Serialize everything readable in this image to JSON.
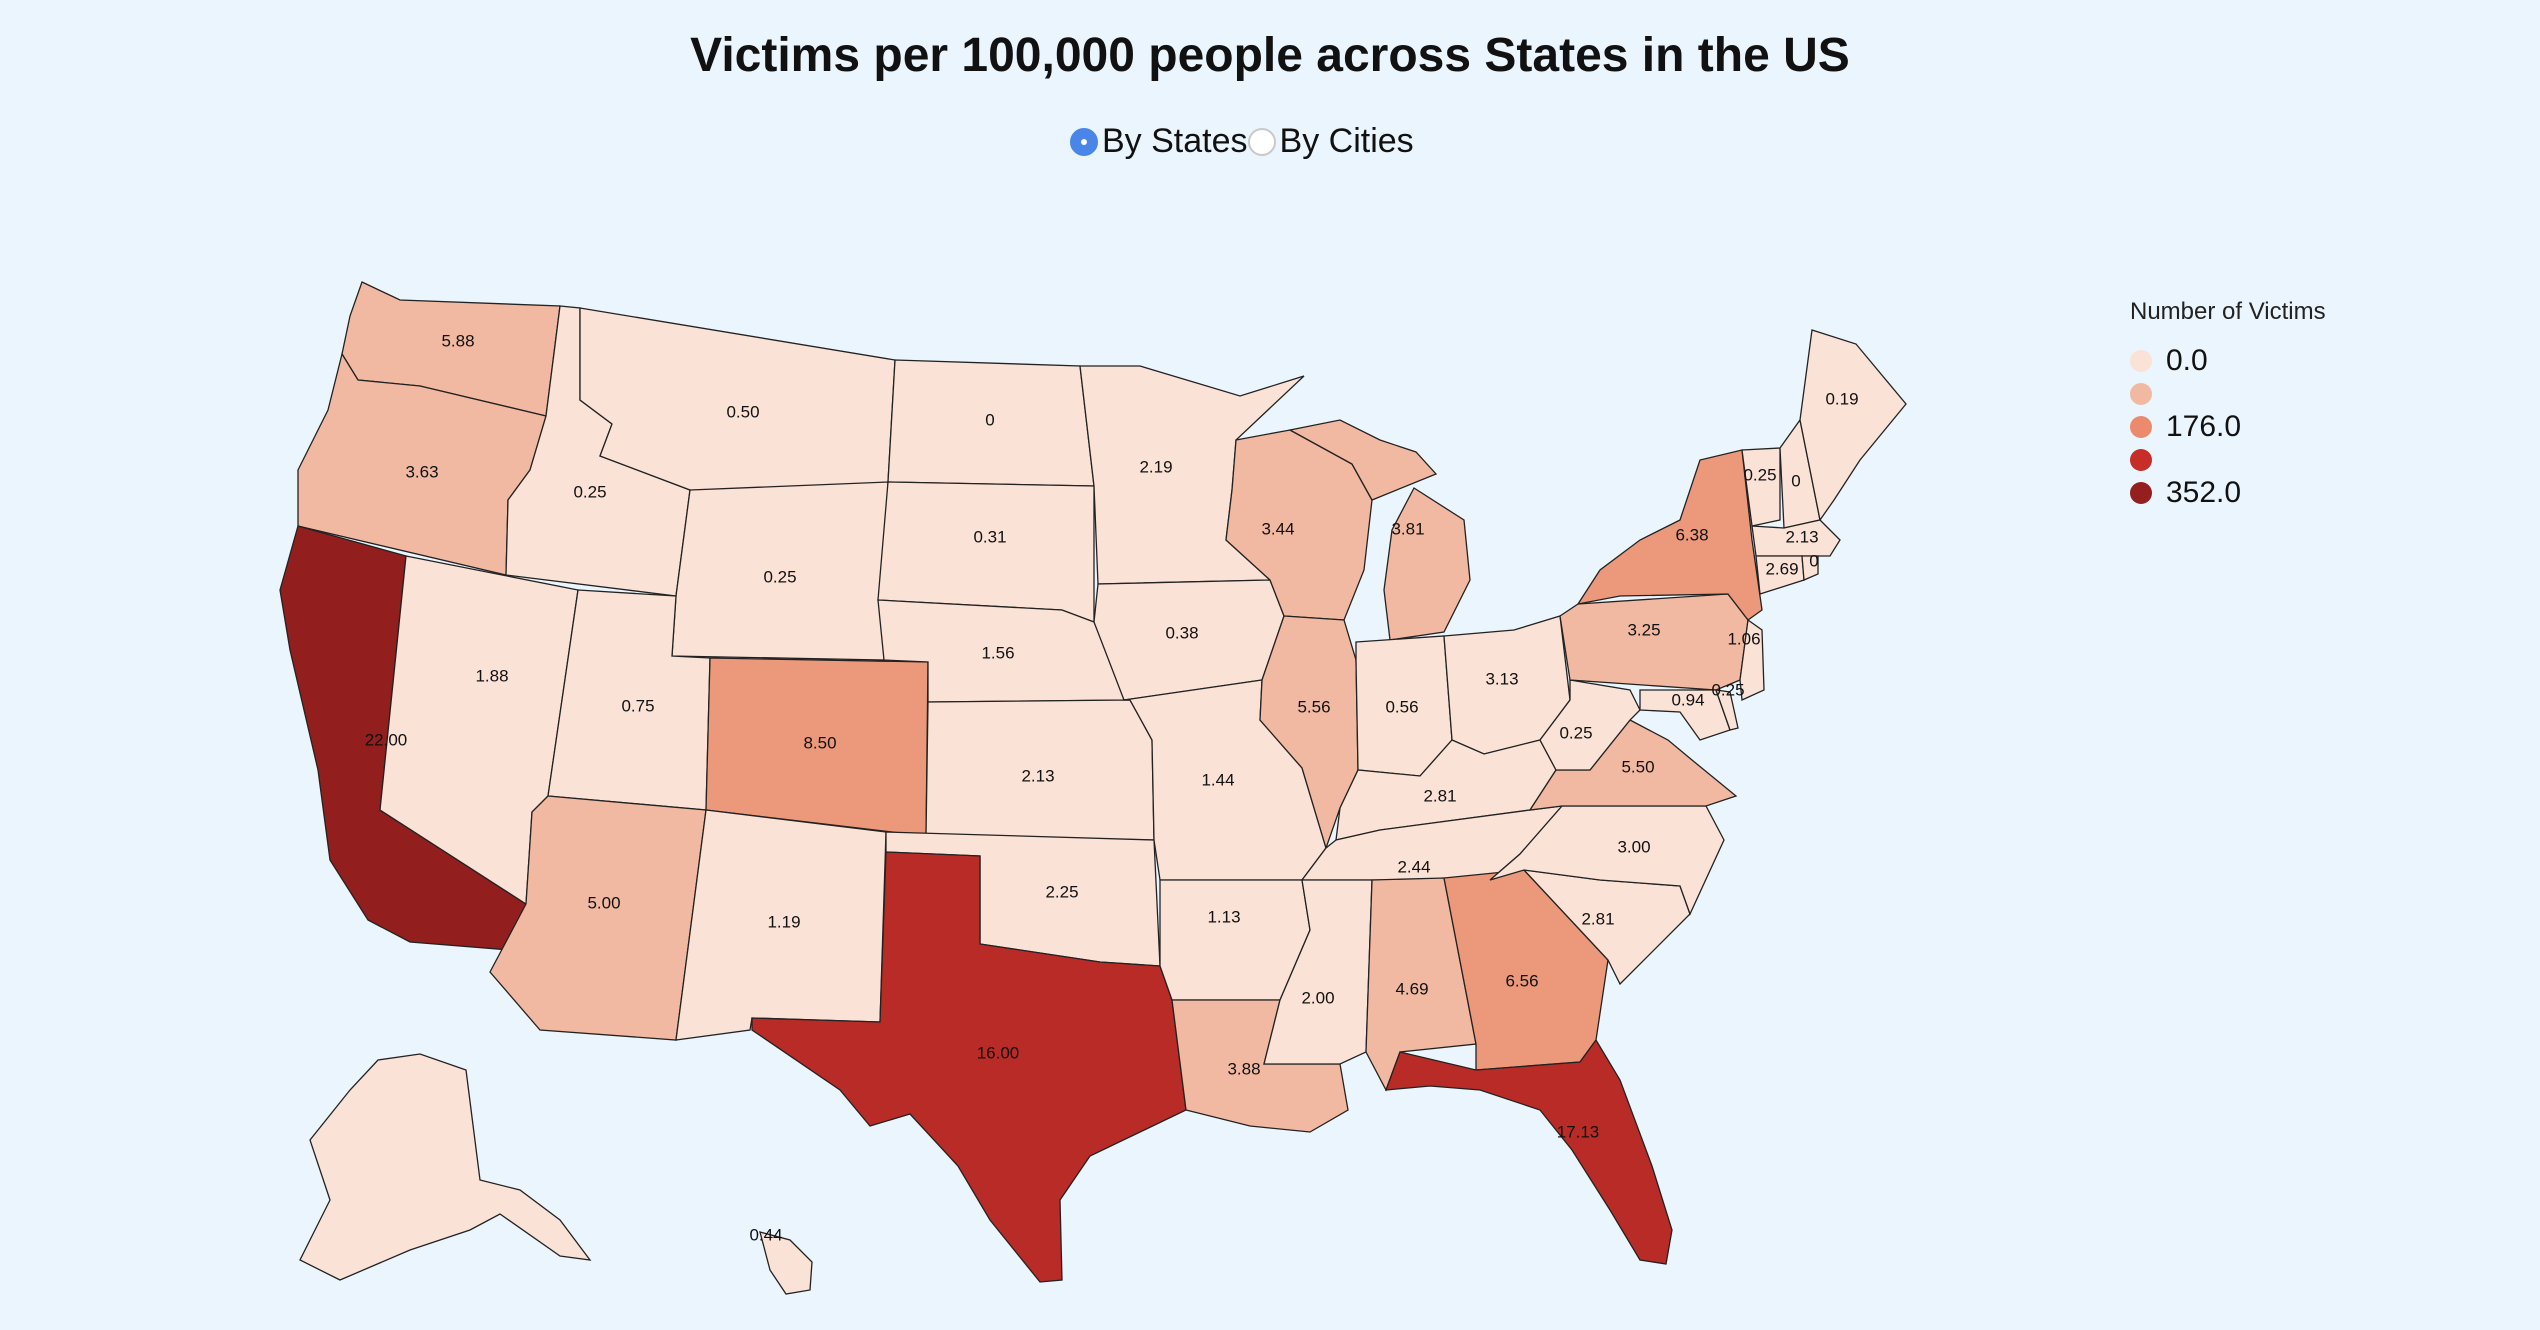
{
  "title": "Victims per 100,000 people across States in the US",
  "toggle": {
    "options": [
      {
        "label": "By States",
        "selected": true
      },
      {
        "label": "By Cities",
        "selected": false
      }
    ]
  },
  "legend": {
    "title": "Number of Victims",
    "items": [
      {
        "label": "0.0",
        "color": "#fbe2d6"
      },
      {
        "label": "",
        "color": "#f2b9a2"
      },
      {
        "label": "176.0",
        "color": "#ec8a6e"
      },
      {
        "label": "",
        "color": "#c62e27"
      },
      {
        "label": "352.0",
        "color": "#931f1e"
      }
    ]
  },
  "colors": {
    "level0": "#fbe2d6",
    "level1": "#f2b9a2",
    "level2": "#ec987b",
    "level3": "#b92b26",
    "level4": "#921f1e"
  },
  "states": {
    "WA": {
      "value": "5.88",
      "level": 1
    },
    "OR": {
      "value": "3.63",
      "level": 1
    },
    "CA": {
      "value": "22.00",
      "level": 4
    },
    "ID": {
      "value": "0.25",
      "level": 0
    },
    "NV": {
      "value": "1.88",
      "level": 0
    },
    "MT": {
      "value": "0.50",
      "level": 0
    },
    "WY": {
      "value": "0.25",
      "level": 0
    },
    "UT": {
      "value": "0.75",
      "level": 0
    },
    "AZ": {
      "value": "5.00",
      "level": 1
    },
    "CO": {
      "value": "8.50",
      "level": 2
    },
    "NM": {
      "value": "1.19",
      "level": 0
    },
    "ND": {
      "value": "0",
      "level": 0
    },
    "SD": {
      "value": "0.31",
      "level": 0
    },
    "NE": {
      "value": "1.56",
      "level": 0
    },
    "KS": {
      "value": "2.13",
      "level": 0
    },
    "OK": {
      "value": "2.25",
      "level": 0
    },
    "TX": {
      "value": "16.00",
      "level": 3
    },
    "MN": {
      "value": "2.19",
      "level": 0
    },
    "IA": {
      "value": "0.38",
      "level": 0
    },
    "MO": {
      "value": "1.44",
      "level": 0
    },
    "AR": {
      "value": "1.13",
      "level": 0
    },
    "LA": {
      "value": "3.88",
      "level": 1
    },
    "WI": {
      "value": "3.44",
      "level": 1
    },
    "IL": {
      "value": "5.56",
      "level": 1
    },
    "MI": {
      "value": "3.81",
      "level": 1
    },
    "IN": {
      "value": "0.56",
      "level": 0
    },
    "OH": {
      "value": "3.13",
      "level": 0
    },
    "KY": {
      "value": "2.81",
      "level": 0
    },
    "TN": {
      "value": "2.44",
      "level": 0
    },
    "MS": {
      "value": "2.00",
      "level": 0
    },
    "AL": {
      "value": "4.69",
      "level": 1
    },
    "GA": {
      "value": "6.56",
      "level": 2
    },
    "FL": {
      "value": "17.13",
      "level": 3
    },
    "SC": {
      "value": "2.81",
      "level": 0
    },
    "NC": {
      "value": "3.00",
      "level": 0
    },
    "VA": {
      "value": "5.50",
      "level": 1
    },
    "WV": {
      "value": "0.25",
      "level": 0
    },
    "PA": {
      "value": "3.25",
      "level": 1
    },
    "NY": {
      "value": "6.38",
      "level": 2
    },
    "NJ": {
      "value": "1.06",
      "level": 0
    },
    "DE": {
      "value": "0.25",
      "level": 0
    },
    "MD": {
      "value": "0.94",
      "level": 0
    },
    "DC": {
      "value": "0.94",
      "level": 0
    },
    "VT": {
      "value": "0.25",
      "level": 0
    },
    "NH": {
      "value": "0",
      "level": 0
    },
    "ME": {
      "value": "0.19",
      "level": 0
    },
    "MA": {
      "value": "2.13",
      "level": 0
    },
    "CT": {
      "value": "2.69",
      "level": 0
    },
    "RI": {
      "value": "0",
      "level": 0
    },
    "AK": {
      "value": "",
      "level": 0
    },
    "HI": {
      "value": "0.44",
      "level": 0
    }
  }
}
